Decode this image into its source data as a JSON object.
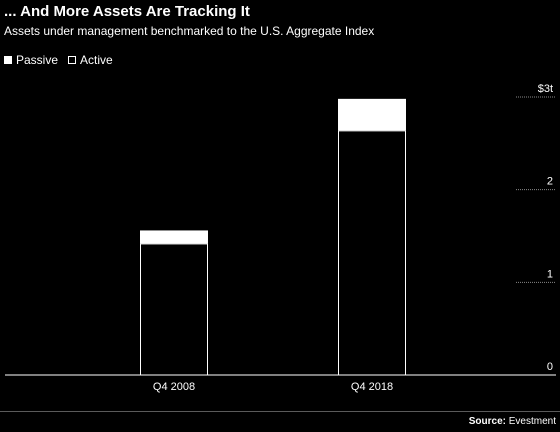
{
  "header": {
    "title": "... And More Assets Are Tracking It",
    "subtitle": "Assets under management benchmarked to the U.S. Aggregate Index"
  },
  "legend": {
    "passive_label": "Passive",
    "active_label": "Active"
  },
  "footer": {
    "source_label": "Source:",
    "source_value": "Evestment"
  },
  "colors": {
    "background": "#000000",
    "passive": "#ffffff",
    "active_outline": "#ffffff",
    "grid": "#888888"
  },
  "chart_data": {
    "type": "bar",
    "stacked": true,
    "categories": [
      "Q4 2008",
      "Q4 2018"
    ],
    "series": [
      {
        "name": "Active",
        "values": [
          1.42,
          2.64
        ]
      },
      {
        "name": "Passive",
        "values": [
          0.14,
          0.34
        ]
      }
    ],
    "ylim": [
      0,
      3
    ],
    "yticks": [
      0,
      1,
      2,
      3
    ],
    "ytick_labels": [
      "0",
      "1",
      "2",
      "$3t"
    ],
    "y_axis_side": "right",
    "legend_position": "top-left",
    "grid": true
  }
}
